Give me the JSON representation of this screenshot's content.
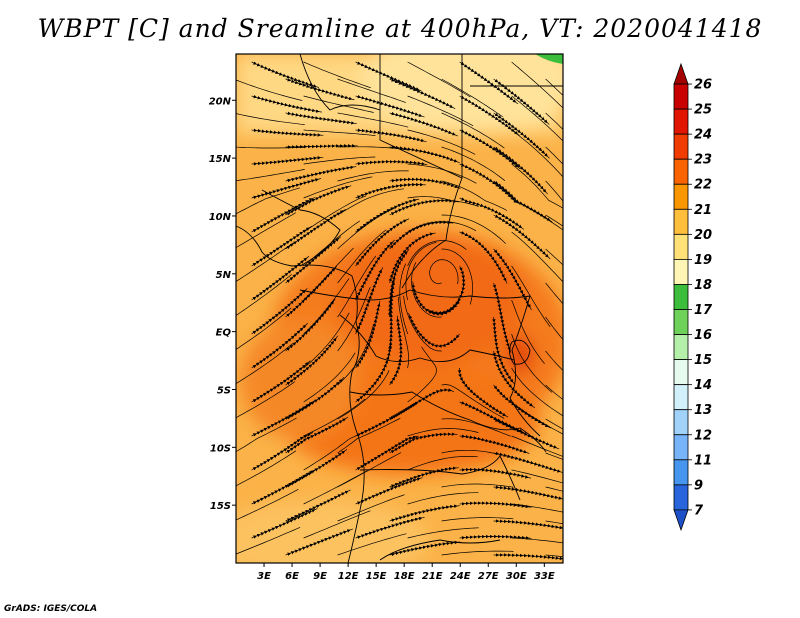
{
  "title": "WBPT [C] and Sreamline at 400hPa, VT: 2020041418",
  "credit": "GrADS: IGES/COLA",
  "map": {
    "lon_labels": [
      "3E",
      "6E",
      "9E",
      "12E",
      "15E",
      "18E",
      "21E",
      "24E",
      "27E",
      "30E",
      "33E"
    ],
    "lat_labels": [
      "20N",
      "15N",
      "10N",
      "5N",
      "EQ",
      "5S",
      "10S",
      "15S"
    ],
    "lon_range": [
      0,
      35
    ],
    "lat_range": [
      -20,
      24
    ],
    "lon_values": [
      3,
      6,
      9,
      12,
      15,
      18,
      21,
      24,
      27,
      30,
      33
    ],
    "lat_values": [
      20,
      15,
      10,
      5,
      0,
      -5,
      -10,
      -15
    ]
  },
  "colorbar": {
    "labels": [
      "26",
      "25",
      "24",
      "23",
      "22",
      "21",
      "20",
      "19",
      "18",
      "17",
      "16",
      "15",
      "14",
      "13",
      "12",
      "11",
      "9",
      "7"
    ],
    "colors": [
      "#a50000",
      "#c80000",
      "#e11500",
      "#f03c00",
      "#fa6400",
      "#fa9600",
      "#ffbe3c",
      "#ffe178",
      "#fff5b4",
      "#3cbe3c",
      "#6ed25a",
      "#b4f0aa",
      "#e6faf0",
      "#d2f0fa",
      "#a0d2fa",
      "#78b4fa",
      "#4696f0",
      "#2864dc",
      "#1e50c8"
    ]
  }
}
